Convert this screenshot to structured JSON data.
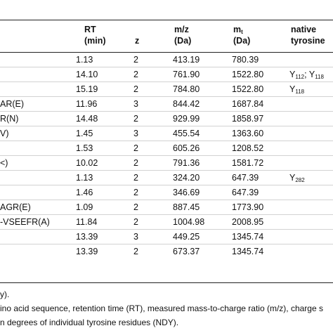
{
  "table": {
    "headers": {
      "rt": [
        "RT",
        "(min)"
      ],
      "z": "z",
      "mz": [
        "m/z",
        "(Da)"
      ],
      "mt_base": "m",
      "mt_sub": "t",
      "mt_unit": "(Da)",
      "native": [
        "native",
        "tyrosine"
      ]
    },
    "rows": [
      {
        "peptide": "",
        "rt": "1.13",
        "z": "2",
        "mz": "413.19",
        "mt": "780.39",
        "native": []
      },
      {
        "peptide": "",
        "rt": "14.10",
        "z": "2",
        "mz": "761.90",
        "mt": "1522.80",
        "native": [
          {
            "base": "Y",
            "sub": "112"
          },
          {
            "sep": "; "
          },
          {
            "base": "Y",
            "sub": "118"
          }
        ]
      },
      {
        "peptide": "",
        "rt": "15.19",
        "z": "2",
        "mz": "784.80",
        "mt": "1522.80",
        "native": [
          {
            "base": "Y",
            "sub": "118"
          }
        ]
      },
      {
        "peptide": "AR(E)",
        "rt": "11.96",
        "z": "3",
        "mz": "844.42",
        "mt": "1687.84",
        "native": []
      },
      {
        "peptide": "R(N)",
        "rt": "14.48",
        "z": "2",
        "mz": "929.99",
        "mt": "1858.97",
        "native": []
      },
      {
        "peptide": "V)",
        "rt": "1.45",
        "z": "3",
        "mz": "455.54",
        "mt": "1363.60",
        "native": []
      },
      {
        "peptide": "",
        "rt": "1.53",
        "z": "2",
        "mz": "605.26",
        "mt": "1208.52",
        "native": []
      },
      {
        "peptide": "<)",
        "rt": "10.02",
        "z": "2",
        "mz": "791.36",
        "mt": "1581.72",
        "native": []
      },
      {
        "peptide": "",
        "rt": "1.13",
        "z": "2",
        "mz": "324.20",
        "mt": "647.39",
        "native": [
          {
            "base": "Y",
            "sub": "282"
          }
        ]
      },
      {
        "peptide": "",
        "rt": "1.46",
        "z": "2",
        "mz": "346.69",
        "mt": "647.39",
        "native": []
      },
      {
        "peptide": "AGR(E)",
        "rt": "1.09",
        "z": "2",
        "mz": "887.45",
        "mt": "1773.90",
        "native": []
      },
      {
        "peptide": "-VSEEFR(A)",
        "rt": "11.84",
        "z": "2",
        "mz": "1004.98",
        "mt": "2008.95",
        "native": []
      },
      {
        "peptide": "",
        "rt": "13.39",
        "z": "3",
        "mz": "449.25",
        "mt": "1345.74",
        "native": []
      },
      {
        "peptide": "",
        "rt": "13.39",
        "z": "2",
        "mz": "673.37",
        "mt": "1345.74",
        "native": []
      }
    ]
  },
  "footnotes": [
    "y).",
    "ino acid sequence, retention time (RT), measured mass-to-charge ratio (m/z), charge s",
    "n degrees of individual tyrosine residues (NDY)."
  ]
}
